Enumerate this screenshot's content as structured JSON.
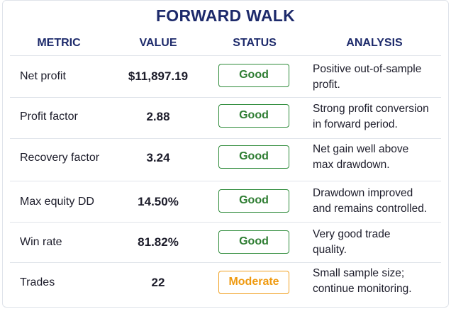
{
  "title": "FORWARD WALK",
  "columns": {
    "metric": "METRIC",
    "value": "VALUE",
    "status": "STATUS",
    "analysis": "ANALYSIS"
  },
  "rows": [
    {
      "metric": "Net profit",
      "value": "$11,897.19",
      "status": "Good",
      "analysis_1": "Positive out-of-sample",
      "analysis_2": "profit."
    },
    {
      "metric": "Profit factor",
      "value": "2.88",
      "status": "Good",
      "analysis_1": "Strong profit conversion",
      "analysis_2": "in forward period."
    },
    {
      "metric": "Recovery factor",
      "value": "3.24",
      "status": "Good",
      "analysis_1": "Net gain well above",
      "analysis_2": "max drawdown."
    },
    {
      "metric": "Max equity DD",
      "value": "14.50%",
      "status": "Good",
      "analysis_1": "Drawdown improved",
      "analysis_2": "and remains controlled."
    },
    {
      "metric": "Win rate",
      "value": "81.82%",
      "status": "Good",
      "analysis_1": "Very good trade",
      "analysis_2": "quality."
    },
    {
      "metric": "Trades",
      "value": "22",
      "status": "Moderate",
      "analysis_1": "Small sample size;",
      "analysis_2": "continue monitoring."
    }
  ],
  "colors": {
    "heading": "#1d2a6b",
    "good": "#2e7d32",
    "moderate": "#ef9a10"
  }
}
